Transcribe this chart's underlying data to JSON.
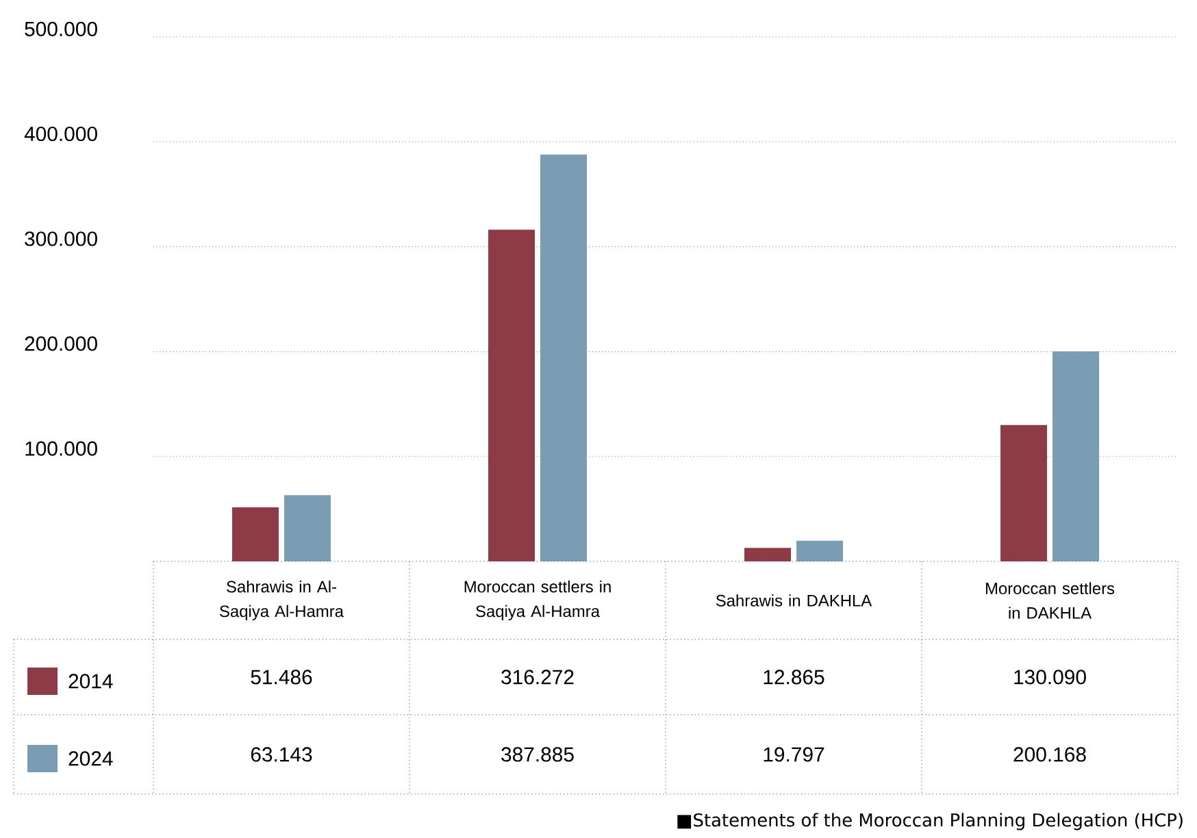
{
  "chart_data": {
    "type": "bar",
    "categories": [
      "Sahrawis in Al-Saqiya Al-Hamra",
      "Moroccan settlers in Saqiya Al-Hamra",
      "Sahrawis in DAKHLA",
      "Moroccan settlers in DAKHLA"
    ],
    "series": [
      {
        "name": "2014",
        "color": "#8c3b47",
        "values": [
          51486,
          316272,
          12865,
          130090
        ],
        "value_labels": [
          "51.486",
          "316.272",
          "12.865",
          "130.090"
        ]
      },
      {
        "name": "2024",
        "color": "#7a9db4",
        "values": [
          63143,
          387885,
          19797,
          200168
        ],
        "value_labels": [
          "63.143",
          "387.885",
          "19.797",
          "200.168"
        ]
      }
    ],
    "ylim": [
      0,
      500000
    ],
    "yticks": [
      {
        "value": 100000,
        "label": "100.000"
      },
      {
        "value": 200000,
        "label": "200.000"
      },
      {
        "value": 300000,
        "label": "300.000"
      },
      {
        "value": 400000,
        "label": "400.000"
      },
      {
        "value": 500000,
        "label": "500.000"
      }
    ],
    "grid": "y",
    "legend": "bottom left",
    "annotations": [
      "■Statements of the Moroccan Planning Delegation (HCP)"
    ]
  }
}
